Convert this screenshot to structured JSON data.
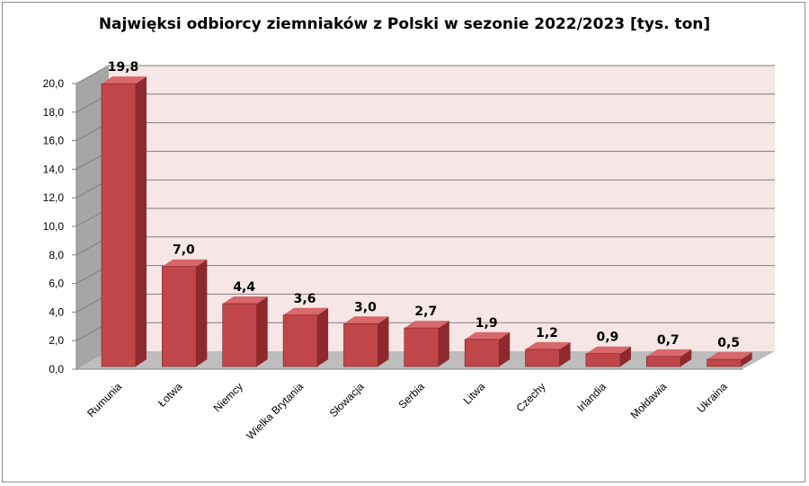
{
  "chart_data": {
    "type": "bar",
    "title": "Najwięksi odbiorcy ziemniaków z Polski w sezonie 2022/2023 [tys. ton]",
    "categories": [
      "Rumunia",
      "Łotwa",
      "Niemcy",
      "Wielka Brytania",
      "Słowacja",
      "Serbia",
      "Litwa",
      "Czechy",
      "Irlandia",
      "Mołdawia",
      "Ukraina"
    ],
    "values": [
      19.8,
      7.0,
      4.4,
      3.6,
      3.0,
      2.7,
      1.9,
      1.2,
      0.9,
      0.7,
      0.5
    ],
    "data_labels": [
      "19,8",
      "7,0",
      "4,4",
      "3,6",
      "3,0",
      "2,7",
      "1,9",
      "1,2",
      "0,9",
      "0,7",
      "0,5"
    ],
    "y_ticks": [
      "0,0",
      "2,0",
      "4,0",
      "6,0",
      "8,0",
      "10,0",
      "12,0",
      "14,0",
      "16,0",
      "18,0",
      "20,0"
    ],
    "ylim": [
      0,
      20
    ],
    "grid": true,
    "legend": "none",
    "colors": {
      "bar_front": "#c0464a",
      "bar_side": "#8e2a2d",
      "bar_top": "#d8686b",
      "wall": "#f7e6e6",
      "side_wall": "#a6a6a6",
      "floor": "#bdbdbd",
      "grid": "#7f7f7f"
    }
  }
}
